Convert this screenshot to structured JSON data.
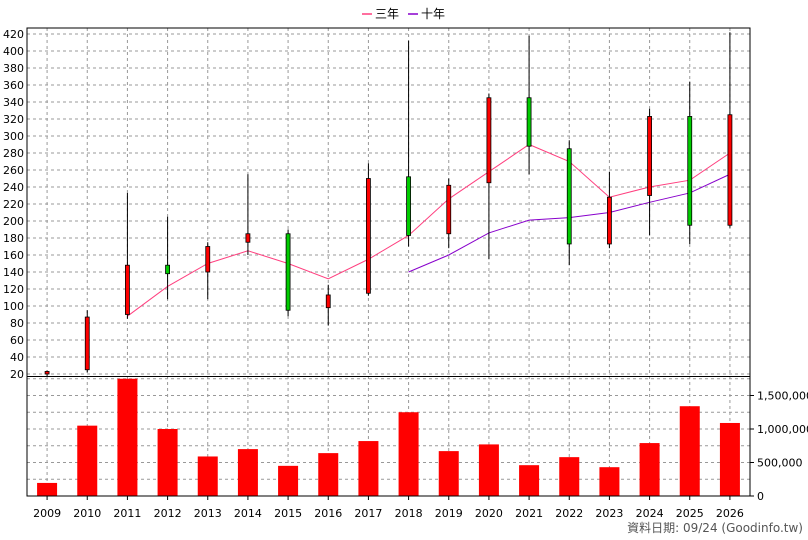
{
  "chart_data": {
    "type": "candlestick",
    "years": [
      "2009",
      "2010",
      "2011",
      "2012",
      "2013",
      "2014",
      "2015",
      "2016",
      "2017",
      "2018",
      "2019",
      "2020",
      "2021",
      "2022",
      "2023",
      "2024",
      "2025",
      "2026"
    ],
    "candles": [
      {
        "year": "2009",
        "open": 20,
        "close": 23,
        "high": 24,
        "low": 17,
        "color": "red"
      },
      {
        "year": "2010",
        "open": 25,
        "close": 87,
        "high": 95,
        "low": 22,
        "color": "red"
      },
      {
        "year": "2011",
        "open": 90,
        "close": 148,
        "high": 233,
        "low": 85,
        "color": "red"
      },
      {
        "year": "2012",
        "open": 148,
        "close": 138,
        "high": 205,
        "low": 108,
        "color": "green"
      },
      {
        "year": "2013",
        "open": 140,
        "close": 170,
        "high": 175,
        "low": 108,
        "color": "red"
      },
      {
        "year": "2014",
        "open": 175,
        "close": 185,
        "high": 255,
        "low": 160,
        "color": "red"
      },
      {
        "year": "2015",
        "open": 185,
        "close": 95,
        "high": 190,
        "low": 88,
        "color": "green"
      },
      {
        "year": "2016",
        "open": 98,
        "close": 113,
        "high": 125,
        "low": 77,
        "color": "red"
      },
      {
        "year": "2017",
        "open": 115,
        "close": 250,
        "high": 268,
        "low": 112,
        "color": "red"
      },
      {
        "year": "2018",
        "open": 252,
        "close": 183,
        "high": 412,
        "low": 170,
        "color": "green"
      },
      {
        "year": "2019",
        "open": 185,
        "close": 242,
        "high": 250,
        "low": 168,
        "color": "red"
      },
      {
        "year": "2020",
        "open": 245,
        "close": 345,
        "high": 350,
        "low": 155,
        "color": "red"
      },
      {
        "year": "2021",
        "open": 345,
        "close": 288,
        "high": 418,
        "low": 255,
        "color": "green"
      },
      {
        "year": "2022",
        "open": 285,
        "close": 173,
        "high": 295,
        "low": 148,
        "color": "green"
      },
      {
        "year": "2023",
        "open": 173,
        "close": 228,
        "high": 258,
        "low": 168,
        "color": "red"
      },
      {
        "year": "2024",
        "open": 230,
        "close": 323,
        "high": 332,
        "low": 183,
        "color": "red"
      },
      {
        "year": "2025",
        "open": 323,
        "close": 195,
        "high": 364,
        "low": 173,
        "color": "green"
      },
      {
        "year": "2026",
        "open": 195,
        "close": 325,
        "high": 422,
        "low": 192,
        "color": "red"
      }
    ],
    "ma3": {
      "name": "三年",
      "color": "#ff3f7f",
      "values": [
        null,
        null,
        88,
        123,
        150,
        165,
        150,
        132,
        155,
        183,
        226,
        258,
        290,
        270,
        228,
        240,
        248,
        280
      ]
    },
    "ma10": {
      "name": "十年",
      "color": "#8800cc",
      "values": [
        null,
        null,
        null,
        null,
        null,
        null,
        null,
        null,
        null,
        140,
        160,
        186,
        201,
        204,
        210,
        222,
        233,
        255
      ]
    },
    "volume": [
      195000,
      1050000,
      1750000,
      1000000,
      590000,
      700000,
      450000,
      640000,
      820000,
      1250000,
      670000,
      770000,
      460000,
      580000,
      430000,
      790000,
      1340000,
      1090000
    ],
    "price_ticks": [
      20,
      40,
      60,
      80,
      100,
      120,
      140,
      160,
      180,
      200,
      220,
      240,
      260,
      280,
      300,
      320,
      340,
      360,
      380,
      400,
      420
    ],
    "volume_ticks": [
      "0",
      "500,000",
      "1,000,000",
      "1,500,000"
    ],
    "volume_tick_values": [
      0,
      500000,
      1000000,
      1500000
    ],
    "price_range": [
      20,
      422
    ],
    "volume_range": [
      0,
      1750000
    ],
    "grid": true
  },
  "legend": {
    "ma3_label": "三年",
    "ma10_label": "十年"
  },
  "footer": "資料日期: 09/24  (Goodinfo.tw)",
  "colors": {
    "up": "#ff0000",
    "down": "#00cc00",
    "volume": "#ff0000",
    "grid": "#999999"
  }
}
